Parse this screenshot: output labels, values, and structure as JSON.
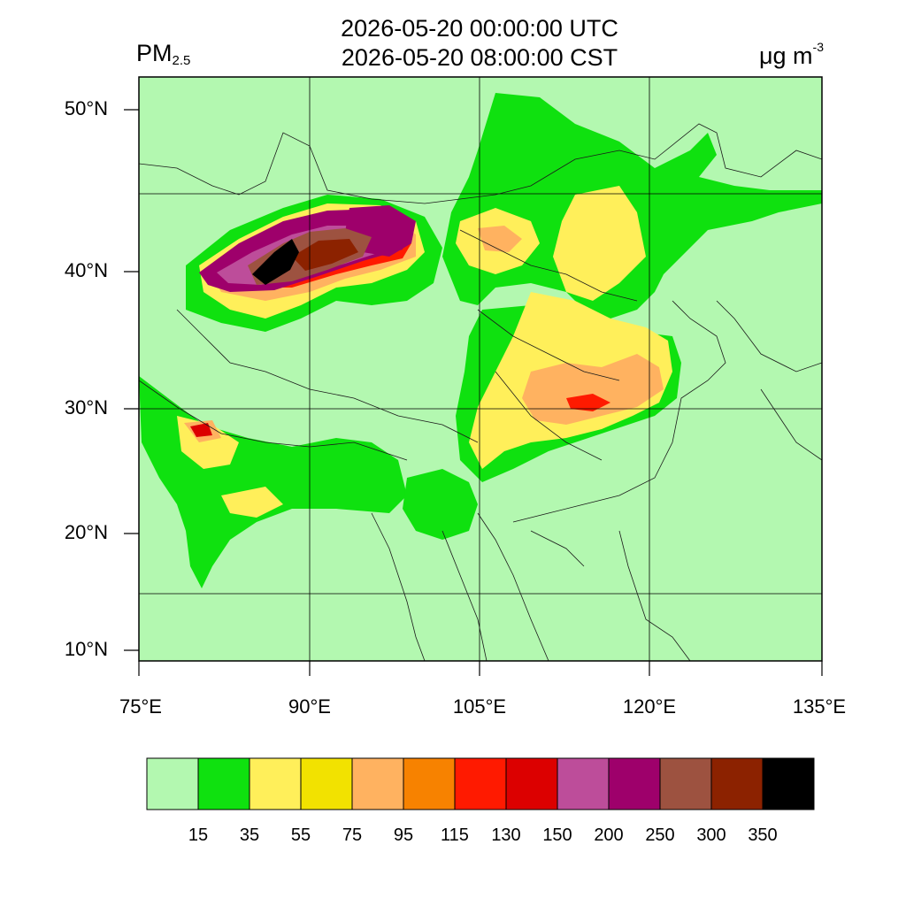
{
  "header": {
    "title_line1": "2026-05-20 00:00:00 UTC",
    "title_line2": "2026-05-20 08:00:00 CST",
    "variable_main": "PM",
    "variable_sub": "2.5",
    "unit_main": "μg m",
    "unit_sup": "-3"
  },
  "map": {
    "lon_range": [
      75,
      135
    ],
    "lat_range": [
      9,
      52
    ],
    "background_color": "#b3f8b0",
    "lon_ticks": [
      "75°E",
      "90°E",
      "105°E",
      "120°E",
      "135°E"
    ],
    "lat_ticks": [
      "50°N",
      "40°N",
      "30°N",
      "20°N",
      "10°N"
    ]
  },
  "colorbar": {
    "colors": [
      "#b3f8b0",
      "#0fe10f",
      "#ffef5a",
      "#f2e200",
      "#ffb260",
      "#f78200",
      "#ff1a00",
      "#dc0000",
      "#bd4d9a",
      "#9e006b",
      "#9d5240",
      "#8c2200",
      "#000000"
    ],
    "labels": [
      "15",
      "35",
      "55",
      "75",
      "95",
      "115",
      "130",
      "150",
      "200",
      "250",
      "300",
      "350"
    ]
  }
}
